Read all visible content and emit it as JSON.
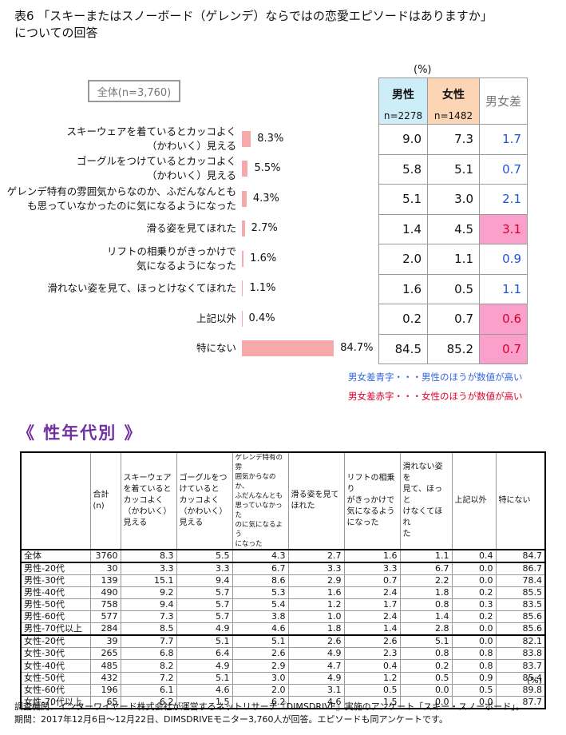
{
  "title": "表6 「スキーまたはスノーボード（ゲレンデ）ならではの恋愛エピソードはありますか」\nについての回答",
  "unit": "(%)",
  "total_label": "全体(n=3,760)",
  "chart_data": {
    "type": "bar",
    "orientation": "horizontal",
    "categories": [
      "スキーウェアを着ているとカッコよく\n（かわいく）見える",
      "ゴーグルをつけているとカッコよく\n（かわいく）見える",
      "ゲレンデ特有の雰囲気からなのか、ふだんなんとも\nも思っていなかったのに気になるようになった",
      "滑る姿を見てほれた",
      "リフトの相乗りがきっかけで\n気になるようになった",
      "滑れない姿を見て、ほっとけなくてほれた",
      "上記以外",
      "特にない"
    ],
    "values": [
      8.3,
      5.5,
      4.3,
      2.7,
      1.6,
      1.1,
      0.4,
      84.7
    ],
    "value_labels": [
      "8.3%",
      "5.5%",
      "4.3%",
      "2.7%",
      "1.6%",
      "1.1%",
      "0.4%",
      "84.7%"
    ],
    "color": "#f7a8a8"
  },
  "gender_table": {
    "headers": [
      {
        "label": "男性",
        "n": "n=2278",
        "color": "#cdeef8"
      },
      {
        "label": "女性",
        "n": "n=1482",
        "color": "#fcd5b4"
      },
      {
        "label": "男女差"
      }
    ],
    "rows": [
      [
        "9.0",
        "7.3",
        "1.7"
      ],
      [
        "5.8",
        "5.1",
        "0.7"
      ],
      [
        "5.1",
        "3.0",
        "2.1"
      ],
      [
        "1.4",
        "4.5",
        "3.1"
      ],
      [
        "2.0",
        "1.1",
        "0.9"
      ],
      [
        "1.6",
        "0.5",
        "1.1"
      ],
      [
        "0.2",
        "0.7",
        "0.6"
      ],
      [
        "84.5",
        "85.2",
        "0.7"
      ]
    ],
    "diff_colors": [
      "#1f55d0",
      "#1f55d0",
      "#1f55d0",
      "#d8002a",
      "#1f55d0",
      "#1f55d0",
      "#d8002a",
      "#d8002a"
    ],
    "diff_backgrounds": [
      "#ffffff",
      "#ffffff",
      "#ffffff",
      "#fb9fcb",
      "#ffffff",
      "#ffffff",
      "#fb9fcb",
      "#fb9fcb"
    ]
  },
  "notes": [
    {
      "text": "男女差青字・・・男性のほうが数値が高い",
      "color": "#2f66e0"
    },
    {
      "text": "男女差赤字・・・女性のほうが数値が高い",
      "color": "#e0002a"
    }
  ],
  "section_title": "《 性年代別 》",
  "age_table": {
    "headers": [
      "合計\n(n)",
      "スキーウェア\nを着ていると\nカッコよく\n（かわいく）\n見える",
      "ゴーグルをつ\nけていると\nカッコよく\n（かわいく）\n見える",
      "ゲレンデ特有の雰\n囲気からなのか、\nふだんなんとも\n思っていなかった\nのに気になるよう\nになった",
      "滑る姿を見て\nほれた",
      "リフトの相乗り\nがきっかけで\n気になるよう\nになった",
      "滑れない姿を\n見て、ほっと\nけなくてほれ\nた",
      "上記以外",
      "特にない"
    ],
    "rows": [
      {
        "label": "全体",
        "values": [
          "3760",
          "8.3",
          "5.5",
          "4.3",
          "2.7",
          "1.6",
          "1.1",
          "0.4",
          "84.7"
        ]
      },
      {
        "label": "男性-20代",
        "values": [
          "30",
          "3.3",
          "3.3",
          "6.7",
          "3.3",
          "3.3",
          "6.7",
          "0.0",
          "86.7"
        ]
      },
      {
        "label": "男性-30代",
        "values": [
          "139",
          "15.1",
          "9.4",
          "8.6",
          "2.9",
          "0.7",
          "2.2",
          "0.0",
          "78.4"
        ]
      },
      {
        "label": "男性-40代",
        "values": [
          "490",
          "9.2",
          "5.7",
          "5.3",
          "1.6",
          "2.4",
          "1.8",
          "0.2",
          "85.5"
        ]
      },
      {
        "label": "男性-50代",
        "values": [
          "758",
          "9.4",
          "5.7",
          "5.4",
          "1.2",
          "1.7",
          "0.8",
          "0.3",
          "83.5"
        ]
      },
      {
        "label": "男性-60代",
        "values": [
          "577",
          "7.3",
          "5.7",
          "3.8",
          "1.0",
          "2.4",
          "1.4",
          "0.2",
          "85.6"
        ]
      },
      {
        "label": "男性-70代以上",
        "values": [
          "284",
          "8.5",
          "4.9",
          "4.6",
          "1.8",
          "1.4",
          "2.8",
          "0.0",
          "85.6"
        ]
      },
      {
        "label": "女性-20代",
        "values": [
          "39",
          "7.7",
          "5.1",
          "5.1",
          "2.6",
          "2.6",
          "5.1",
          "0.0",
          "82.1"
        ]
      },
      {
        "label": "女性-30代",
        "values": [
          "265",
          "6.8",
          "6.4",
          "2.6",
          "4.9",
          "2.3",
          "0.8",
          "0.8",
          "83.8"
        ]
      },
      {
        "label": "女性-40代",
        "values": [
          "485",
          "8.2",
          "4.9",
          "2.9",
          "4.7",
          "0.4",
          "0.2",
          "0.8",
          "83.7"
        ]
      },
      {
        "label": "女性-50代",
        "values": [
          "432",
          "7.2",
          "5.1",
          "3.0",
          "4.9",
          "1.2",
          "0.5",
          "0.9",
          "85.4"
        ]
      },
      {
        "label": "女性-60代",
        "values": [
          "196",
          "6.1",
          "4.6",
          "2.0",
          "3.1",
          "0.5",
          "0.0",
          "0.5",
          "89.8"
        ]
      },
      {
        "label": "女性-70代以上",
        "values": [
          "65",
          "6.2",
          "1.5",
          "6.2",
          "4.6",
          "1.5",
          "0.0",
          "0.0",
          "87.7"
        ]
      }
    ]
  },
  "footer": [
    "調査機関：インターワイヤード株式会社が運営するネットリサーチ『DIMSDRIVE』実施のアンケート「スキー・スノーボード」。",
    "期間：2017年12月6日～12月22日、DIMSDRIVEモニター3,760人が回答。エピソードも同アンケートです。"
  ]
}
